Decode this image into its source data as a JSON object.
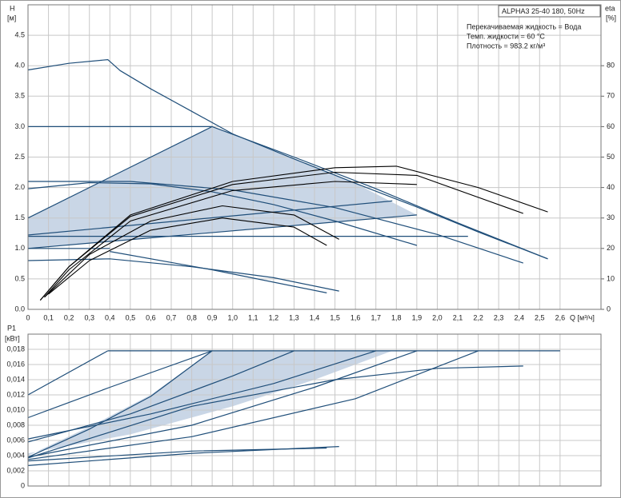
{
  "chart_data": [
    {
      "type": "line",
      "title": "ALPHA3 25-40 180, 50Hz",
      "annotations": [
        "Перекачиваемая жидкость = Вода",
        "Темп. жидкости = 60 °C",
        "Плотность = 983.2 кг/м³"
      ],
      "y_label": "H",
      "y_unit": "[м]",
      "y2_label": "eta",
      "y2_unit": "[%]",
      "x_label": "Q [м³/ч]",
      "xlim": [
        0,
        2.8
      ],
      "xticks": [
        0,
        {
          "value": 0.1,
          "label": "0,1"
        },
        {
          "value": 0.2,
          "label": "0,2"
        },
        {
          "value": 0.3,
          "label": "0,3"
        },
        {
          "value": 0.4,
          "label": "0,4"
        },
        {
          "value": 0.5,
          "label": "0,5"
        },
        {
          "value": 0.6,
          "label": "0,6"
        },
        {
          "value": 0.7,
          "label": "0,7"
        },
        {
          "value": 0.8,
          "label": "0,8"
        },
        {
          "value": 0.9,
          "label": "0,9"
        },
        {
          "value": 1.0,
          "label": "1,0"
        },
        {
          "value": 1.1,
          "label": "1,1"
        },
        {
          "value": 1.2,
          "label": "1,2"
        },
        {
          "value": 1.3,
          "label": "1,3"
        },
        {
          "value": 1.4,
          "label": "1,4"
        },
        {
          "value": 1.5,
          "label": "1,5"
        },
        {
          "value": 1.6,
          "label": "1,6"
        },
        {
          "value": 1.7,
          "label": "1,7"
        },
        {
          "value": 1.8,
          "label": "1,8"
        },
        {
          "value": 1.9,
          "label": "1,9"
        },
        {
          "value": 2.0,
          "label": "2,0"
        },
        {
          "value": 2.1,
          "label": "2,1"
        },
        {
          "value": 2.2,
          "label": "2,2"
        },
        {
          "value": 2.3,
          "label": "2,3"
        },
        {
          "value": 2.4,
          "label": "2,4"
        },
        {
          "value": 2.5,
          "label": "2,5"
        },
        {
          "value": 2.6,
          "label": "2,6"
        }
      ],
      "ylim": [
        0,
        5
      ],
      "yticks": [
        {
          "value": 0,
          "label": "0.0"
        },
        0.5,
        {
          "value": 1,
          "label": "1.0"
        },
        1.5,
        {
          "value": 2,
          "label": "2.0"
        },
        2.5,
        {
          "value": 3,
          "label": "3.0"
        },
        3.5,
        {
          "value": 4,
          "label": "4.0"
        },
        4.5
      ],
      "y2lim": [
        0,
        100
      ],
      "y2ticks": [
        0,
        10,
        20,
        30,
        40,
        50,
        60,
        70,
        80
      ],
      "grid": true,
      "region": {
        "color": "#c9d6e6",
        "x": [
          0,
          0.9,
          1.3,
          1.6,
          1.9,
          0,
          0
        ],
        "values": [
          1.5,
          3.0,
          2.48,
          2.07,
          1.55,
          1.0,
          1.5
        ]
      },
      "series": [
        {
          "color": "#1f4e79",
          "x": [
            0,
            0.2,
            0.39,
            0.45,
            0.6,
            0.8,
            1.0,
            1.3,
            1.6,
            1.9,
            2.2,
            2.54
          ],
          "values": [
            3.93,
            4.04,
            4.1,
            3.92,
            3.62,
            3.25,
            2.88,
            2.47,
            2.07,
            1.68,
            1.27,
            0.83
          ]
        },
        {
          "color": "#1f4e79",
          "x": [
            0,
            0.9,
            1.3,
            1.7,
            2.1,
            2.54
          ],
          "values": [
            3,
            3,
            2.5,
            1.98,
            1.42,
            0.83
          ]
        },
        {
          "color": "#1f4e79",
          "x": [
            0,
            0.9
          ],
          "values": [
            1.5,
            3.0
          ]
        },
        {
          "color": "#1f4e79",
          "x": [
            0,
            0.5,
            1.0,
            1.5,
            2.0,
            2.42
          ],
          "values": [
            2.1,
            2.1,
            1.96,
            1.67,
            1.23,
            0.76
          ]
        },
        {
          "color": "#1f4e79",
          "x": [
            0,
            0.3,
            0.6,
            0.9,
            1.2,
            1.5,
            1.9
          ],
          "values": [
            1.98,
            2.08,
            2.06,
            1.93,
            1.72,
            1.45,
            1.05
          ]
        },
        {
          "color": "#1f4e79",
          "x": [
            0,
            1.9
          ],
          "values": [
            1.0,
            1.55
          ]
        },
        {
          "color": "#1f4e79",
          "x": [
            0,
            1.78
          ],
          "values": [
            1.22,
            1.78
          ]
        },
        {
          "color": "#1f4e79",
          "x": [
            0,
            2.15
          ],
          "values": [
            1.2,
            1.2
          ]
        },
        {
          "color": "#1f4e79",
          "x": [
            0,
            0.4
          ],
          "values": [
            1.0,
            1.0
          ]
        },
        {
          "color": "#1f4e79",
          "x": [
            0,
            0.4,
            0.8,
            1.2,
            1.52
          ],
          "values": [
            0.8,
            0.83,
            0.7,
            0.52,
            0.3
          ]
        },
        {
          "color": "#1f4e79",
          "x": [
            0.4,
            0.9,
            1.46
          ],
          "values": [
            0.95,
            0.65,
            0.27
          ]
        },
        {
          "color": "#000000",
          "axis": "y2",
          "x": [
            0.06,
            0.2,
            0.5,
            1.0,
            1.5,
            1.8,
            2.2,
            2.54
          ],
          "values": [
            3,
            14,
            31,
            42,
            46.5,
            47,
            40,
            32
          ]
        },
        {
          "color": "#000000",
          "axis": "y2",
          "x": [
            0.06,
            0.2,
            0.5,
            1.0,
            1.5,
            1.9,
            2.42
          ],
          "values": [
            3,
            14,
            30.5,
            41,
            45,
            44,
            31.5
          ]
        },
        {
          "color": "#000000",
          "axis": "y2",
          "x": [
            0.08,
            0.2,
            0.5,
            1.0,
            1.5,
            1.9
          ],
          "values": [
            4,
            13,
            29,
            39,
            42,
            41
          ]
        },
        {
          "color": "#000000",
          "axis": "y2",
          "x": [
            0.08,
            0.3,
            0.6,
            0.95,
            1.3,
            1.52
          ],
          "values": [
            4,
            18,
            29,
            34,
            31,
            23
          ]
        },
        {
          "color": "#000000",
          "axis": "y2",
          "x": [
            0.1,
            0.3,
            0.6,
            0.95,
            1.3,
            1.46
          ],
          "values": [
            5,
            16,
            26,
            30,
            27,
            21
          ]
        }
      ]
    },
    {
      "type": "line",
      "y_label": "P1",
      "y_unit": "[кВт]",
      "xlim": [
        0,
        2.8
      ],
      "ylim": [
        0,
        0.02
      ],
      "yticks": [
        0,
        {
          "value": 0.002,
          "label": "0,002"
        },
        {
          "value": 0.004,
          "label": "0,004"
        },
        {
          "value": 0.006,
          "label": "0,006"
        },
        {
          "value": 0.008,
          "label": "0,008"
        },
        {
          "value": 0.01,
          "label": "0,010"
        },
        {
          "value": 0.012,
          "label": "0,012"
        },
        {
          "value": 0.014,
          "label": "0,014"
        },
        {
          "value": 0.016,
          "label": "0,016"
        },
        {
          "value": 0.018,
          "label": "0,018"
        }
      ],
      "grid": true,
      "region": {
        "color": "#c9d6e6",
        "x": [
          0,
          0.3,
          0.6,
          0.9,
          1.78,
          1.4,
          1.0,
          0.5,
          0
        ],
        "values": [
          0.004,
          0.0078,
          0.012,
          0.0178,
          0.0178,
          0.014,
          0.0105,
          0.0068,
          0.0043
        ]
      },
      "series": [
        {
          "color": "#1f4e79",
          "x": [
            0.39,
            2.6
          ],
          "values": [
            0.0178,
            0.0178
          ]
        },
        {
          "color": "#1f4e79",
          "x": [
            0,
            0.39
          ],
          "values": [
            0.012,
            0.0178
          ]
        },
        {
          "color": "#1f4e79",
          "x": [
            0,
            0.4,
            0.9
          ],
          "values": [
            0.009,
            0.013,
            0.0178
          ]
        },
        {
          "color": "#1f4e79",
          "x": [
            0,
            0.3,
            0.6,
            0.9
          ],
          "values": [
            0.0038,
            0.0075,
            0.0118,
            0.0178
          ]
        },
        {
          "color": "#1f4e79",
          "x": [
            0,
            0.5,
            1.0,
            1.3
          ],
          "values": [
            0.0058,
            0.0095,
            0.0145,
            0.0178
          ]
        },
        {
          "color": "#1f4e79",
          "x": [
            0,
            0.6,
            1.2,
            1.7
          ],
          "values": [
            0.0062,
            0.0095,
            0.0135,
            0.0178
          ]
        },
        {
          "color": "#1f4e79",
          "x": [
            0,
            0.8,
            1.4,
            1.9
          ],
          "values": [
            0.0038,
            0.008,
            0.013,
            0.0178
          ]
        },
        {
          "color": "#1f4e79",
          "x": [
            0,
            0.8,
            1.6,
            2.2
          ],
          "values": [
            0.0035,
            0.0065,
            0.0115,
            0.0178
          ]
        },
        {
          "color": "#1f4e79",
          "x": [
            0,
            0.8,
            1.5,
            2.0,
            2.42
          ],
          "values": [
            0.0037,
            0.0105,
            0.014,
            0.0155,
            0.0158
          ]
        },
        {
          "color": "#1f4e79",
          "x": [
            0,
            0.8,
            1.52
          ],
          "values": [
            0.0027,
            0.0043,
            0.0052
          ]
        },
        {
          "color": "#1f4e79",
          "x": [
            0,
            0.8,
            1.46
          ],
          "values": [
            0.0033,
            0.0046,
            0.005
          ]
        }
      ]
    }
  ]
}
